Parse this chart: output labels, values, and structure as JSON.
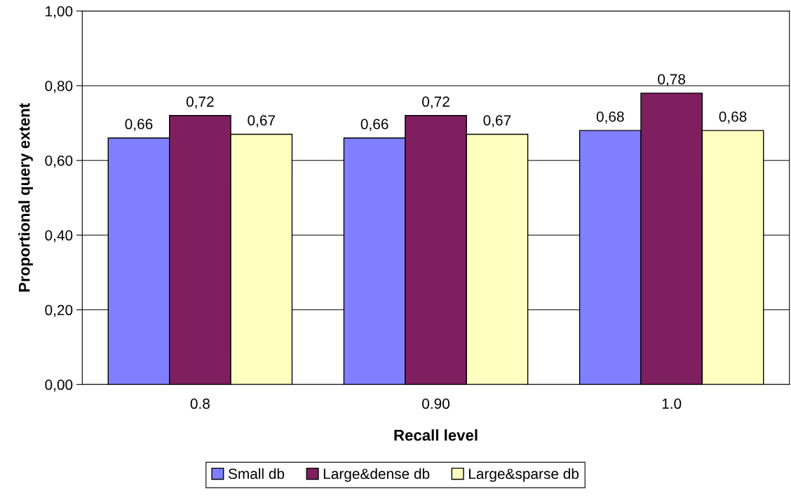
{
  "chart_data": {
    "type": "bar",
    "xlabel": "Recall level",
    "ylabel": "Proportional query extent",
    "categories": [
      "0.8",
      "0.90",
      "1.0"
    ],
    "series": [
      {
        "name": "Small db",
        "color": "#8080ff",
        "values": [
          0.66,
          0.66,
          0.68
        ],
        "value_labels": [
          "0,66",
          "0,66",
          "0,68"
        ]
      },
      {
        "name": "Large&dense db",
        "color": "#801f5f",
        "values": [
          0.72,
          0.72,
          0.78
        ],
        "value_labels": [
          "0,72",
          "0,72",
          "0,78"
        ]
      },
      {
        "name": "Large&sparse db",
        "color": "#ffffc0",
        "values": [
          0.67,
          0.67,
          0.68
        ],
        "value_labels": [
          "0,67",
          "0,67",
          "0,68"
        ]
      }
    ],
    "ylim": [
      0,
      1
    ],
    "yticks": [
      {
        "value": 0,
        "label": "0,00"
      },
      {
        "value": 0.2,
        "label": "0,20"
      },
      {
        "value": 0.4,
        "label": "0,40"
      },
      {
        "value": 0.6,
        "label": "0,60"
      },
      {
        "value": 0.8,
        "label": "0,80"
      },
      {
        "value": 1,
        "label": "1,00"
      }
    ],
    "grid": "y",
    "legend": "bottom"
  }
}
